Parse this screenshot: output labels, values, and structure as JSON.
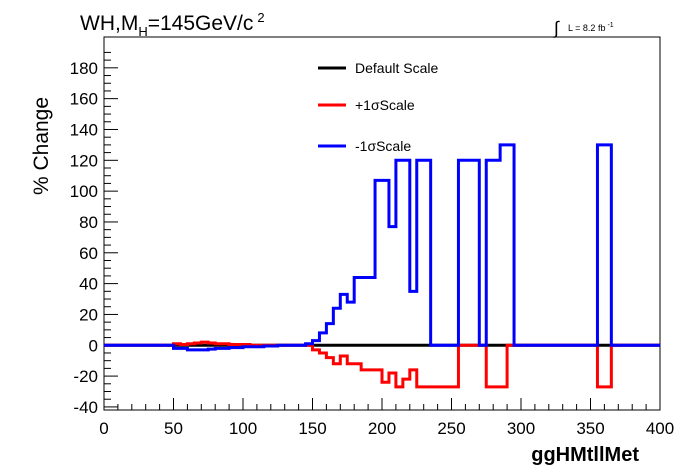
{
  "chart_data": {
    "type": "line",
    "title_main": "WH,M",
    "title_sub": "H",
    "title_rest": "=145GeV/c",
    "title_sup": "2",
    "lumi": "L = 8.2 fb",
    "lumi_sup": "-1",
    "xlabel": "ggHMtllMet",
    "ylabel": "% Change",
    "xlim": [
      0,
      400
    ],
    "ylim": [
      -42,
      200
    ],
    "x_ticks": [
      "0",
      "50",
      "100",
      "150",
      "200",
      "250",
      "300",
      "350",
      "400"
    ],
    "y_ticks": [
      "-40",
      "-20",
      "0",
      "20",
      "40",
      "60",
      "80",
      "100",
      "120",
      "140",
      "160",
      "180"
    ],
    "legend_position": "top-center",
    "bin_edges": [
      0,
      5,
      10,
      15,
      20,
      25,
      30,
      35,
      40,
      45,
      50,
      55,
      60,
      65,
      70,
      75,
      80,
      85,
      90,
      95,
      100,
      105,
      110,
      115,
      120,
      125,
      130,
      135,
      140,
      145,
      150,
      155,
      160,
      165,
      170,
      175,
      180,
      185,
      190,
      195,
      200,
      205,
      210,
      215,
      220,
      225,
      230,
      235,
      240,
      245,
      250,
      255,
      260,
      265,
      270,
      275,
      280,
      285,
      290,
      295,
      300,
      305,
      310,
      315,
      320,
      325,
      330,
      335,
      340,
      345,
      350,
      355,
      360,
      365,
      370,
      375,
      380,
      385,
      390,
      395,
      400
    ],
    "series": [
      {
        "name": "Default Scale",
        "color": "#000000",
        "values": [
          0,
          0,
          0,
          0,
          0,
          0,
          0,
          0,
          0,
          0,
          0,
          0,
          0,
          0,
          0,
          0,
          0,
          0,
          0,
          0,
          0,
          0,
          0,
          0,
          0,
          0,
          0,
          0,
          0,
          0,
          0,
          0,
          0,
          0,
          0,
          0,
          0,
          0,
          0,
          0,
          0,
          0,
          0,
          0,
          0,
          0,
          0,
          0,
          0,
          0,
          0,
          0,
          0,
          0,
          0,
          0,
          0,
          0,
          0,
          0,
          0,
          0,
          0,
          0,
          0,
          0,
          0,
          0,
          0,
          0,
          0,
          0,
          0,
          0,
          0,
          0,
          0,
          0,
          0,
          0
        ]
      },
      {
        "name": "+1σScale",
        "color": "#ff0000",
        "values": [
          0,
          0,
          0,
          0,
          0,
          0,
          0,
          0,
          0,
          0,
          1,
          0.5,
          1,
          1.5,
          2,
          1.5,
          1,
          1,
          0.5,
          0.5,
          0.5,
          0,
          0,
          0,
          0,
          0,
          0,
          0,
          0,
          0,
          -3,
          -5,
          -8,
          -12,
          -7,
          -12,
          -12,
          -16,
          -16,
          -16,
          -24,
          -18,
          -27,
          -22,
          -16,
          -27,
          -27,
          -27,
          -27,
          -27,
          -27,
          0,
          0,
          0,
          0,
          -27,
          -27,
          -27,
          0,
          0,
          0,
          0,
          0,
          0,
          0,
          0,
          0,
          0,
          0,
          0,
          0,
          -27,
          -27,
          0,
          0,
          0,
          0,
          0,
          0,
          0
        ]
      },
      {
        "name": "-1σScale",
        "color": "#0000ff",
        "values": [
          0,
          0,
          0,
          0,
          0,
          0,
          0,
          0,
          0,
          0,
          -2,
          -2,
          -3,
          -3,
          -3,
          -2.5,
          -2,
          -2,
          -1.5,
          -1.5,
          -1,
          -1,
          -1,
          -0.5,
          -0.5,
          0,
          0,
          0,
          0,
          1,
          3,
          8,
          14,
          24,
          33,
          28,
          44,
          44,
          44,
          107,
          107,
          77,
          120,
          120,
          35,
          120,
          120,
          0,
          0,
          0,
          0,
          120,
          120,
          120,
          0,
          120,
          120,
          130,
          130,
          0,
          0,
          0,
          0,
          0,
          0,
          0,
          0,
          0,
          0,
          0,
          0,
          130,
          130,
          0,
          0,
          0,
          0,
          0,
          0,
          0
        ]
      }
    ]
  }
}
